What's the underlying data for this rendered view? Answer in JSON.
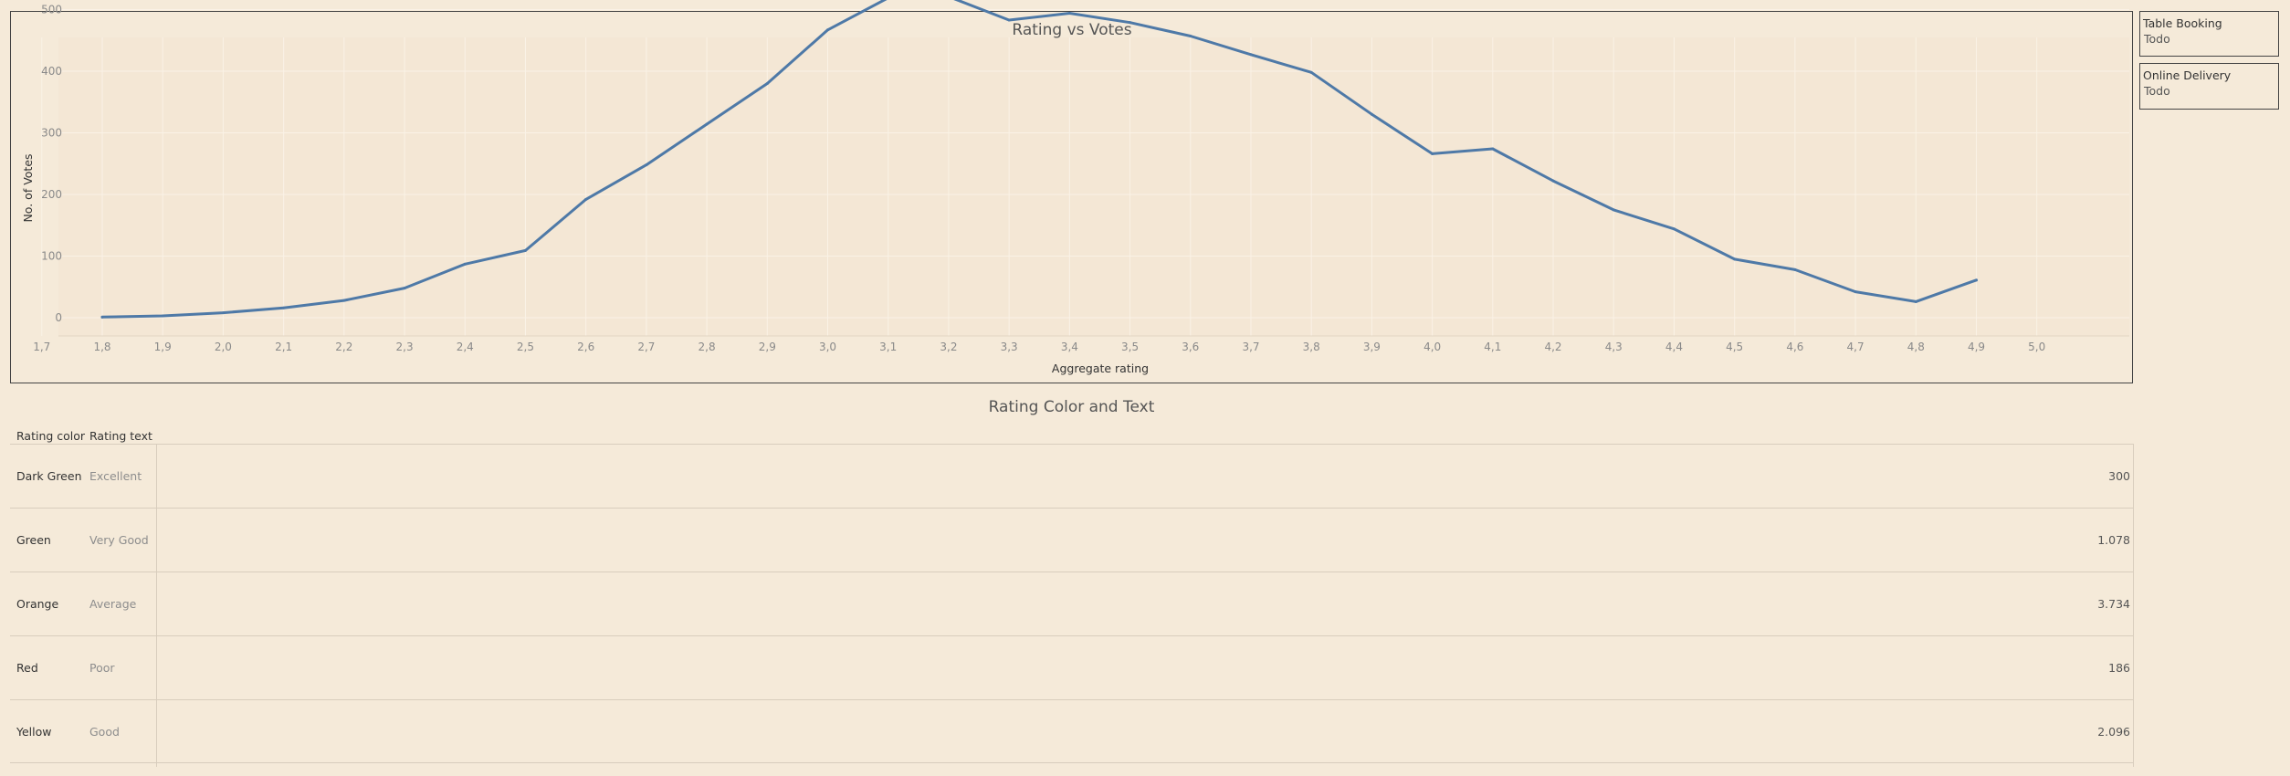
{
  "chart_data": {
    "type": "line",
    "title": "Rating vs Votes",
    "xlabel": "Aggregate rating",
    "ylabel": "No. of Votes",
    "x_ticks": [
      "1,7",
      "1,8",
      "1,9",
      "2,0",
      "2,1",
      "2,2",
      "2,3",
      "2,4",
      "2,5",
      "2,6",
      "2,7",
      "2,8",
      "2,9",
      "3,0",
      "3,1",
      "3,2",
      "3,3",
      "3,4",
      "3,5",
      "3,6",
      "3,7",
      "3,8",
      "3,9",
      "4,0",
      "4,1",
      "4,2",
      "4,3",
      "4,4",
      "4,5",
      "4,6",
      "4,7",
      "4,8",
      "4,9",
      "5,0"
    ],
    "y_ticks": [
      "0",
      "100",
      "200",
      "300",
      "400",
      "500"
    ],
    "xlim": [
      1.7,
      5.0
    ],
    "ylim": [
      0,
      500
    ],
    "grid": true,
    "line_color": "#4e79a7",
    "series": [
      {
        "x": [
          1.8,
          1.9,
          2.0,
          2.1,
          2.2,
          2.3,
          2.4,
          2.5,
          2.6,
          2.7,
          2.8,
          2.9,
          3.0,
          3.1,
          3.2,
          3.3,
          3.4,
          3.5,
          3.6,
          3.7,
          3.8,
          3.9,
          4.0,
          4.1,
          4.2,
          4.3,
          4.4,
          4.5,
          4.6,
          4.7,
          4.8,
          4.9
        ],
        "values": [
          1,
          3,
          8,
          16,
          28,
          48,
          87,
          109,
          192,
          248,
          314,
          380,
          467,
          519,
          521,
          483,
          494,
          479,
          457,
          427,
          398,
          330,
          266,
          274,
          222,
          175,
          144,
          95,
          78,
          42,
          26,
          61
        ]
      }
    ]
  },
  "filters": [
    {
      "title": "Table Booking",
      "value": "Todo"
    },
    {
      "title": "Online Delivery",
      "value": "Todo"
    }
  ],
  "table": {
    "title": "Rating Color and Text",
    "headers": [
      "Rating color",
      "Rating text"
    ],
    "rows": [
      {
        "color": "Dark Green",
        "text": "Excellent",
        "value": "300"
      },
      {
        "color": "Green",
        "text": "Very Good",
        "value": "1.078"
      },
      {
        "color": "Orange",
        "text": "Average",
        "value": "3.734"
      },
      {
        "color": "Red",
        "text": "Poor",
        "value": "186"
      },
      {
        "color": "Yellow",
        "text": "Good",
        "value": "2.096"
      }
    ]
  }
}
